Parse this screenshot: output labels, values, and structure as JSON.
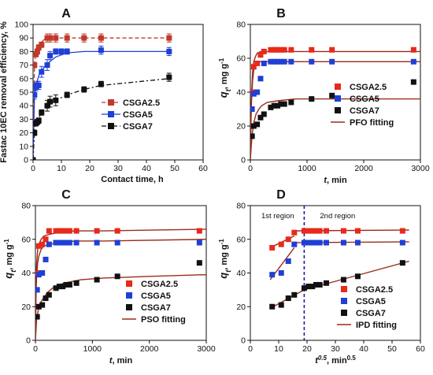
{
  "chart_data": [
    {
      "panel": "A",
      "type": "line",
      "xlabel": "Contact time, h",
      "ylabel": "Fastac 10EC removal efficiency, %",
      "xlim": [
        0,
        60
      ],
      "ylim": [
        0,
        100
      ],
      "xticks": [
        0,
        10,
        20,
        30,
        40,
        50,
        60
      ],
      "yticks": [
        0,
        10,
        20,
        30,
        40,
        50,
        60,
        70,
        80,
        90,
        100
      ],
      "legend": [
        "CSGA2.5",
        "CSGA5",
        "CSGA7"
      ],
      "legend_position": "right",
      "series": [
        {
          "name": "CSGA2.5",
          "color": "#c0392b",
          "marker": "square",
          "line": "dashed",
          "x": [
            0,
            0.5,
            1,
            1.5,
            2,
            3,
            5,
            6,
            8,
            12,
            18,
            24,
            48
          ],
          "y": [
            0,
            70,
            78,
            80,
            83,
            85,
            90,
            90,
            90,
            90,
            90,
            90,
            90
          ],
          "err": [
            0,
            2,
            2,
            2,
            2,
            2,
            3,
            3,
            3,
            3,
            3,
            3,
            3
          ],
          "fit_x": [
            0,
            0.5,
            1,
            2,
            3,
            4,
            5,
            6,
            8,
            12,
            48
          ],
          "fit_y": [
            0,
            72,
            78,
            84,
            87,
            89,
            90,
            90,
            90,
            90,
            90
          ]
        },
        {
          "name": "CSGA5",
          "color": "#1f3fd6",
          "marker": "square",
          "line": "solid",
          "x": [
            0,
            0.5,
            1,
            1.5,
            2,
            3,
            5,
            6,
            8,
            10,
            12,
            24,
            48
          ],
          "y": [
            0,
            48,
            54,
            55,
            55,
            65,
            70,
            77,
            80,
            80,
            80,
            81,
            80
          ],
          "err": [
            0,
            3,
            3,
            3,
            3,
            4,
            4,
            3,
            2,
            2,
            2,
            3,
            3
          ],
          "fit_x": [
            0,
            0.5,
            1,
            2,
            3,
            5,
            8,
            12,
            18,
            48
          ],
          "fit_y": [
            0,
            47,
            55,
            62,
            66,
            71,
            76,
            79,
            80,
            80
          ]
        },
        {
          "name": "CSGA7",
          "color": "#111111",
          "marker": "square",
          "line": "dashdot",
          "x": [
            0,
            0.5,
            1,
            1.5,
            2,
            3,
            5,
            6,
            8,
            12,
            18,
            24,
            48
          ],
          "y": [
            0,
            20,
            27,
            28,
            29,
            35,
            40,
            43,
            44,
            48,
            52,
            56,
            61
          ],
          "err": [
            0,
            2,
            2,
            2,
            2,
            2,
            4,
            4,
            4,
            2,
            2,
            2,
            3
          ],
          "fit_x": [
            0,
            0.5,
            1,
            2,
            3,
            5,
            8,
            12,
            18,
            24,
            48
          ],
          "fit_y": [
            0,
            22,
            27,
            31,
            35,
            40,
            44,
            48,
            52,
            55,
            60
          ]
        }
      ]
    },
    {
      "panel": "B",
      "type": "scatter",
      "xlabel_var": "t",
      "xlabel_unit": ", min",
      "ylabel_var": "q",
      "ylabel_sub": "t",
      "ylabel_unit": ", mg g",
      "ylabel_sup": "-1",
      "xlim": [
        0,
        3000
      ],
      "ylim": [
        0,
        80
      ],
      "xticks": [
        0,
        1000,
        2000,
        3000
      ],
      "yticks": [
        0,
        20,
        40,
        60,
        80
      ],
      "legend": [
        "CSGA2.5",
        "CSGA5",
        "CSGA7",
        "PFO fitting"
      ],
      "legend_position": "center-right",
      "series": [
        {
          "name": "CSGA2.5",
          "color": "#e8291c",
          "x": [
            30,
            60,
            120,
            180,
            240,
            360,
            420,
            480,
            540,
            600,
            720,
            1080,
            1440,
            2880
          ],
          "y": [
            40,
            55,
            57,
            62,
            64,
            65,
            65,
            65,
            65,
            65,
            65,
            65,
            65,
            65
          ]
        },
        {
          "name": "CSGA5",
          "color": "#1f3fd6",
          "x": [
            30,
            60,
            120,
            180,
            240,
            360,
            420,
            480,
            540,
            600,
            720,
            1080,
            1440,
            2880
          ],
          "y": [
            30,
            39,
            40,
            48,
            57,
            58,
            58,
            58,
            58,
            58,
            58,
            58,
            58,
            58
          ]
        },
        {
          "name": "CSGA7",
          "color": "#111111",
          "x": [
            30,
            60,
            120,
            180,
            240,
            360,
            420,
            480,
            540,
            600,
            720,
            1080,
            1440,
            2880
          ],
          "y": [
            14,
            20,
            21,
            25,
            27,
            31,
            32,
            32,
            33,
            33,
            34,
            36,
            38,
            46
          ]
        },
        {
          "name": "PFO fitting",
          "color": "#9b2d1a",
          "kind": "fit",
          "curves": [
            {
              "x": [
                0,
                10,
                20,
                40,
                60,
                90,
                120,
                180,
                240,
                360,
                600,
                3000
              ],
              "y": [
                0,
                23,
                38,
                52,
                58,
                61,
                63,
                64,
                64,
                64,
                64,
                64
              ]
            },
            {
              "x": [
                0,
                10,
                20,
                40,
                60,
                90,
                120,
                180,
                240,
                360,
                600,
                3000
              ],
              "y": [
                0,
                20,
                34,
                47,
                53,
                56,
                57,
                58,
                58,
                58,
                58,
                58
              ]
            },
            {
              "x": [
                0,
                20,
                40,
                60,
                100,
                150,
                200,
                300,
                500,
                800,
                1200,
                3000
              ],
              "y": [
                0,
                10,
                17,
                22,
                27,
                30,
                32,
                34,
                35,
                36,
                36,
                36
              ]
            }
          ]
        }
      ]
    },
    {
      "panel": "C",
      "type": "scatter",
      "xlabel_var": "t",
      "xlabel_unit": ", min",
      "ylabel_var": "q",
      "ylabel_sub": "t",
      "ylabel_unit": ", mg g",
      "ylabel_sup": "-1",
      "xlim": [
        0,
        3000
      ],
      "ylim": [
        0,
        80
      ],
      "xticks": [
        0,
        1000,
        2000,
        3000
      ],
      "yticks": [
        0,
        20,
        40,
        60,
        80
      ],
      "legend": [
        "CSGA2.5",
        "CSGA5",
        "CSGA7",
        "PSO fitting"
      ],
      "legend_position": "bottom-right",
      "series": [
        {
          "name": "CSGA2.5",
          "color": "#e8291c",
          "x": [
            30,
            60,
            120,
            180,
            240,
            360,
            420,
            480,
            540,
            600,
            720,
            1080,
            1440,
            2880
          ],
          "y": [
            40,
            56,
            57,
            60,
            65,
            65,
            65,
            65,
            65,
            65,
            65,
            65,
            65,
            65
          ]
        },
        {
          "name": "CSGA5",
          "color": "#1f3fd6",
          "x": [
            30,
            60,
            120,
            180,
            240,
            360,
            420,
            480,
            540,
            600,
            720,
            1080,
            1440,
            2880
          ],
          "y": [
            30,
            39,
            40,
            48,
            57,
            58,
            58,
            58,
            58,
            58,
            58,
            58,
            58,
            58
          ]
        },
        {
          "name": "CSGA7",
          "color": "#111111",
          "x": [
            30,
            60,
            120,
            180,
            240,
            360,
            420,
            480,
            540,
            600,
            720,
            1080,
            1440,
            2880
          ],
          "y": [
            14,
            20,
            21,
            25,
            27,
            31,
            32,
            32,
            33,
            33,
            34,
            36,
            38,
            46
          ]
        },
        {
          "name": "PSO fitting",
          "color": "#9b2d1a",
          "kind": "fit",
          "curves": [
            {
              "x": [
                0,
                10,
                20,
                40,
                60,
                100,
                150,
                250,
                400,
                700,
                1200,
                3000
              ],
              "y": [
                0,
                33,
                45,
                54,
                57,
                60,
                62,
                63,
                64,
                65,
                65,
                66
              ]
            },
            {
              "x": [
                0,
                10,
                20,
                40,
                60,
                100,
                150,
                250,
                400,
                700,
                1200,
                3000
              ],
              "y": [
                0,
                25,
                37,
                46,
                50,
                54,
                56,
                57,
                58,
                59,
                59,
                60
              ]
            },
            {
              "x": [
                0,
                20,
                50,
                100,
                200,
                300,
                500,
                800,
                1200,
                2000,
                3000
              ],
              "y": [
                0,
                12,
                18,
                23,
                28,
                31,
                34,
                36,
                37,
                38,
                39
              ]
            }
          ]
        }
      ]
    },
    {
      "panel": "D",
      "type": "scatter",
      "xlabel_var": "t",
      "xlabel_sup": "0.5",
      "xlabel_unit": ", min",
      "xlabel_unit_sup": "0.5",
      "ylabel_var": "q",
      "ylabel_sub": "t",
      "ylabel_unit": ", mg g",
      "ylabel_sup": "-1",
      "xlim": [
        0,
        60
      ],
      "ylim": [
        0,
        80
      ],
      "xticks": [
        0,
        10,
        20,
        30,
        40,
        50,
        60
      ],
      "yticks": [
        0,
        20,
        40,
        60,
        80
      ],
      "legend": [
        "CSGA2.5",
        "CSGA5",
        "CSGA7",
        "IPD fitting"
      ],
      "legend_position": "bottom-right",
      "annotations": {
        "region1": "1st region",
        "region2": "2nd region",
        "divider_x": 19
      },
      "series": [
        {
          "name": "CSGA2.5",
          "color": "#e8291c",
          "x": [
            7.7,
            10.9,
            13.4,
            15.5,
            19.0,
            20.5,
            21.9,
            23.2,
            24.5,
            26.8,
            32.9,
            37.9,
            53.7
          ],
          "y": [
            55,
            57,
            60,
            64,
            65,
            65,
            65,
            65,
            65,
            65,
            65,
            65,
            65
          ]
        },
        {
          "name": "CSGA5",
          "color": "#1f3fd6",
          "x": [
            7.7,
            10.9,
            13.4,
            15.5,
            19.0,
            20.5,
            21.9,
            23.2,
            24.5,
            26.8,
            32.9,
            37.9,
            53.7
          ],
          "y": [
            39,
            40,
            47,
            57,
            58,
            58,
            58,
            58,
            58,
            58,
            58,
            58,
            58
          ]
        },
        {
          "name": "CSGA7",
          "color": "#111111",
          "x": [
            7.7,
            10.9,
            13.4,
            15.5,
            19.0,
            20.5,
            21.9,
            23.2,
            24.5,
            26.8,
            32.9,
            37.9,
            53.7
          ],
          "y": [
            20,
            21,
            25,
            27,
            31,
            32,
            32,
            33,
            33,
            34,
            36,
            38,
            46
          ]
        },
        {
          "name": "IPD fitting",
          "color": "#9b2d1a",
          "kind": "fit",
          "curves": [
            {
              "x": [
                7,
                15.5
              ],
              "y": [
                55,
                62
              ]
            },
            {
              "x": [
                15.5,
                56
              ],
              "y": [
                65,
                65.5
              ]
            },
            {
              "x": [
                7,
                15.5
              ],
              "y": [
                36,
                55
              ]
            },
            {
              "x": [
                15.5,
                56
              ],
              "y": [
                58,
                58.5
              ]
            },
            {
              "x": [
                7,
                19
              ],
              "y": [
                19,
                30
              ]
            },
            {
              "x": [
                19,
                56
              ],
              "y": [
                30,
                47
              ]
            }
          ]
        }
      ]
    }
  ]
}
